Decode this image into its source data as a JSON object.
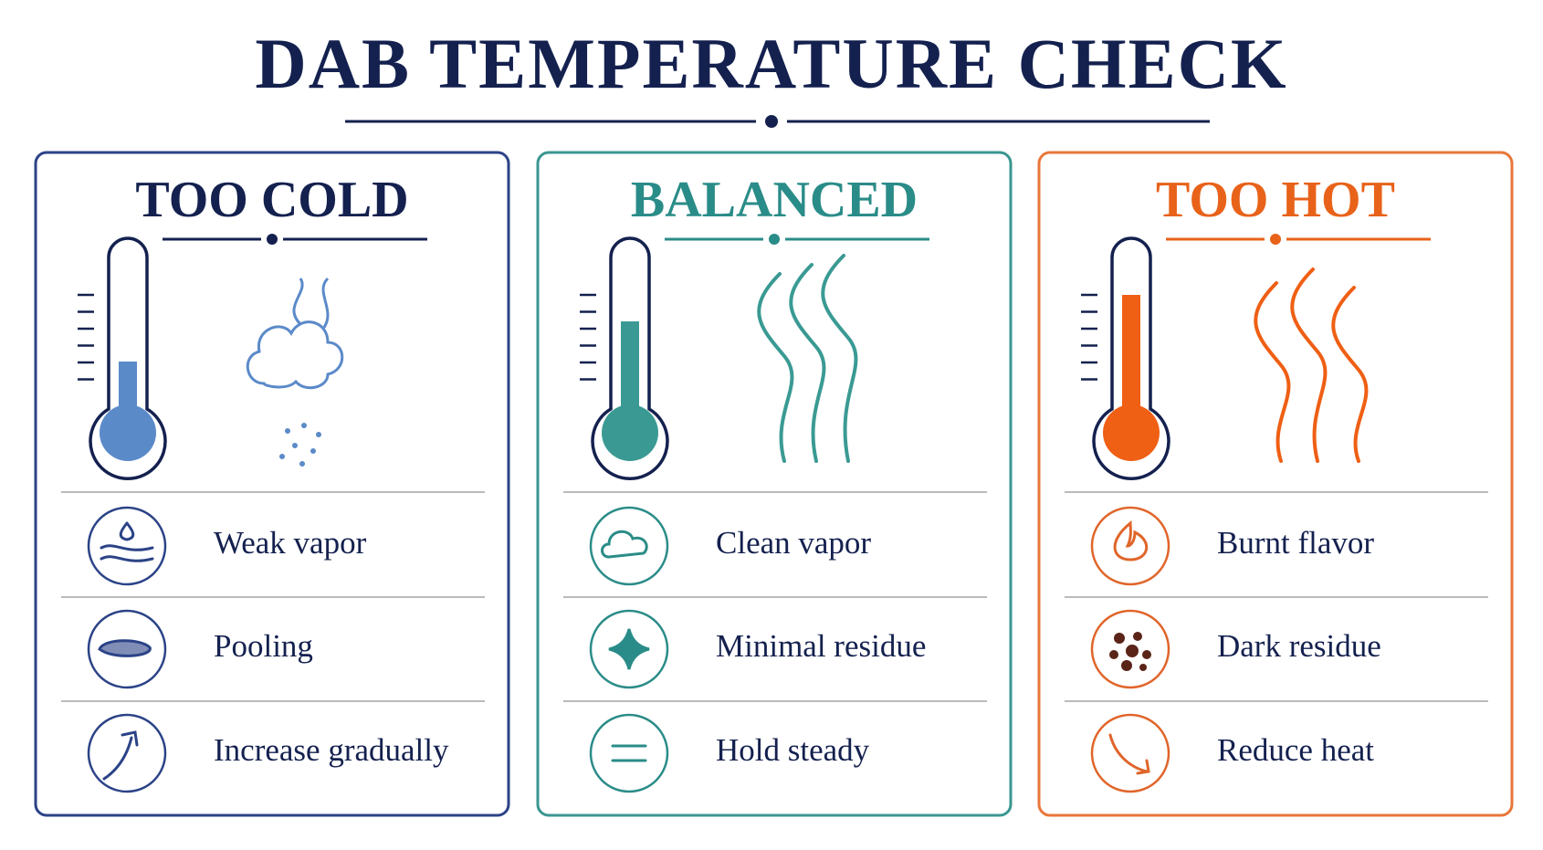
{
  "title": "DAB TEMPERATURE CHECK",
  "panels": [
    {
      "title": "TOO COLD",
      "items": [
        "Weak vapor",
        "Pooling",
        "Increase gradually"
      ]
    },
    {
      "title": "BALANCED",
      "items": [
        "Clean vapor",
        "Minimal residue",
        "Hold steady"
      ]
    },
    {
      "title": "TOO HOT",
      "items": [
        "Burnt flavor",
        "Dark residue",
        "Reduce heat"
      ]
    }
  ]
}
